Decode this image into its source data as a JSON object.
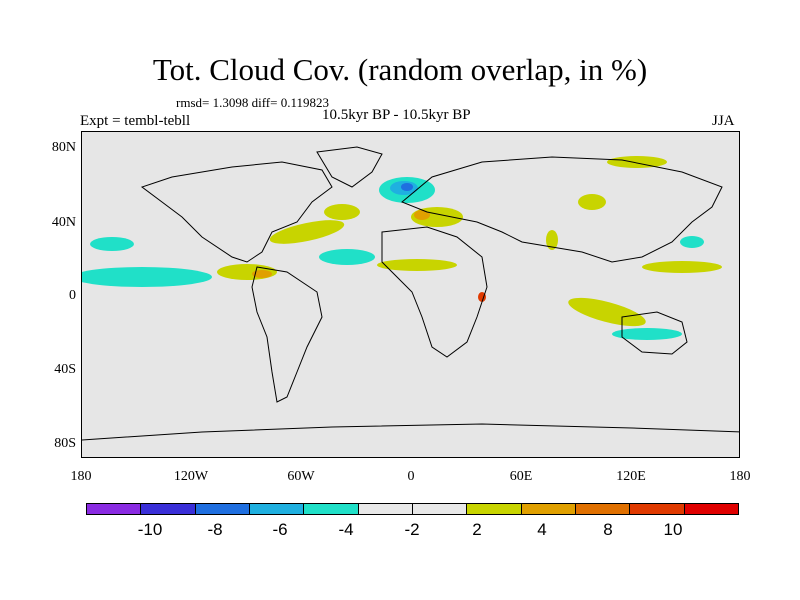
{
  "title": "Tot. Cloud Cov. (random overlap, in %)",
  "stats": "rmsd= 1.3098 diff= 0.119823",
  "expt": "Expt = tembl-tebll",
  "subtitle": "10.5kyr BP - 10.5kyr BP",
  "season": "JJA",
  "lat_labels": [
    "80N",
    "40N",
    "0",
    "40S",
    "80S"
  ],
  "lon_labels": [
    "180",
    "120W",
    "60W",
    "0",
    "60E",
    "120E",
    "180"
  ],
  "colorbar": {
    "colors": [
      "#8a2be2",
      "#3a2fd8",
      "#1f6fe0",
      "#1fb0e0",
      "#20e0c8",
      "#e8e8e8",
      "#e8e8e8",
      "#c8d400",
      "#e0a000",
      "#e07000",
      "#e03a00",
      "#e00000"
    ],
    "labels": [
      "-10",
      "-8",
      "-6",
      "-4",
      "-2",
      "2",
      "4",
      "8",
      "10"
    ]
  },
  "ocean_color": "#e6e6e6"
}
